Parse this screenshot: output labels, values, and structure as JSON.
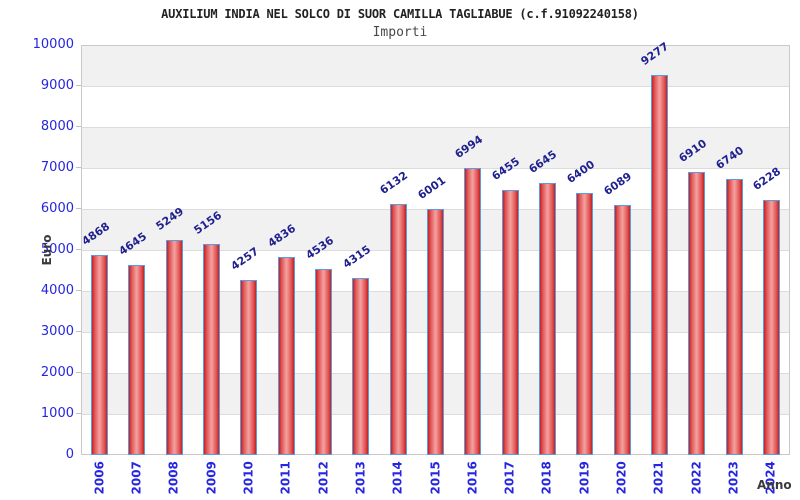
{
  "chart_data": {
    "type": "bar",
    "title": "AUXILIUM INDIA NEL SOLCO DI SUOR CAMILLA TAGLIABUE (c.f.91092240158)",
    "subtitle": "Importi",
    "xlabel": "Anno",
    "ylabel": "Euro",
    "categories": [
      "2006",
      "2007",
      "2008",
      "2009",
      "2010",
      "2011",
      "2012",
      "2013",
      "2014",
      "2015",
      "2016",
      "2017",
      "2018",
      "2019",
      "2020",
      "2021",
      "2022",
      "2023",
      "2024"
    ],
    "values": [
      4868,
      4645,
      5249,
      5156,
      4257,
      4836,
      4536,
      4315,
      6132,
      6001,
      6994,
      6455,
      6645,
      6400,
      6089,
      9277,
      6910,
      6740,
      6228
    ],
    "ylim": [
      0,
      10000
    ],
    "ytick_step": 1000,
    "grid": "horizontal",
    "legend": "none",
    "bar_labels_rotated": true,
    "colors": {
      "bar_edge": "#c52020",
      "bar_center": "#f4a2a2",
      "bar_border": "#5b9ce0",
      "axis_tick_text": "#2626e0",
      "value_label_text": "#1f1f8f",
      "axis_title_text": "#3a3a3a",
      "band_gray": "#f1f1f1",
      "gridline": "#dcdcdc",
      "plot_border": "#c9c9c9",
      "title_text": "#222222"
    }
  }
}
